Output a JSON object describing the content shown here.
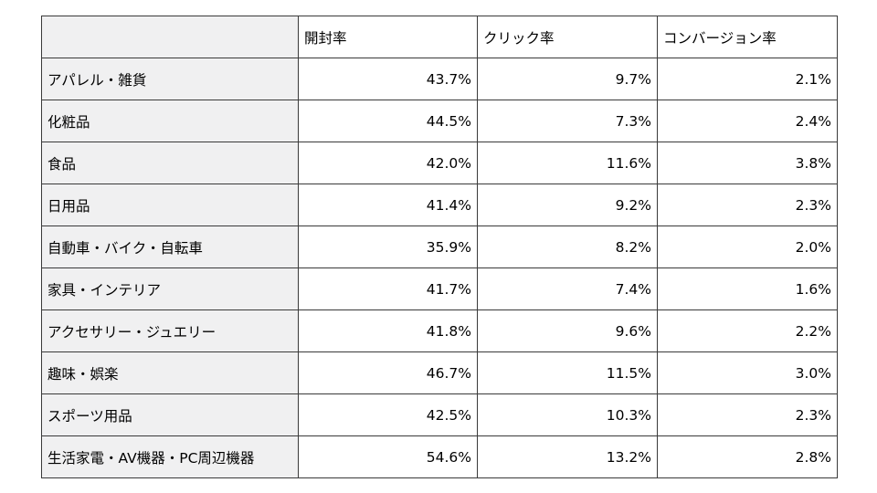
{
  "table": {
    "headers": [
      "",
      "開封率",
      "クリック率",
      "コンバージョン率"
    ],
    "rows": [
      {
        "category": "アパレル・雑貨",
        "open_rate": "43.7%",
        "click_rate": "9.7%",
        "conversion_rate": "2.1%"
      },
      {
        "category": "化粧品",
        "open_rate": "44.5%",
        "click_rate": "7.3%",
        "conversion_rate": "2.4%"
      },
      {
        "category": "食品",
        "open_rate": "42.0%",
        "click_rate": "11.6%",
        "conversion_rate": "3.8%"
      },
      {
        "category": "日用品",
        "open_rate": "41.4%",
        "click_rate": "9.2%",
        "conversion_rate": "2.3%"
      },
      {
        "category": "自動車・バイク・自転車",
        "open_rate": "35.9%",
        "click_rate": "8.2%",
        "conversion_rate": "2.0%"
      },
      {
        "category": "家具・インテリア",
        "open_rate": "41.7%",
        "click_rate": "7.4%",
        "conversion_rate": "1.6%"
      },
      {
        "category": "アクセサリー・ジュエリー",
        "open_rate": "41.8%",
        "click_rate": "9.6%",
        "conversion_rate": "2.2%"
      },
      {
        "category": "趣味・娯楽",
        "open_rate": "46.7%",
        "click_rate": "11.5%",
        "conversion_rate": "3.0%"
      },
      {
        "category": "スポーツ用品",
        "open_rate": "42.5%",
        "click_rate": "10.3%",
        "conversion_rate": "2.3%"
      },
      {
        "category": "生活家電・AV機器・PC周辺機器",
        "open_rate": "54.6%",
        "click_rate": "13.2%",
        "conversion_rate": "2.8%"
      }
    ]
  }
}
